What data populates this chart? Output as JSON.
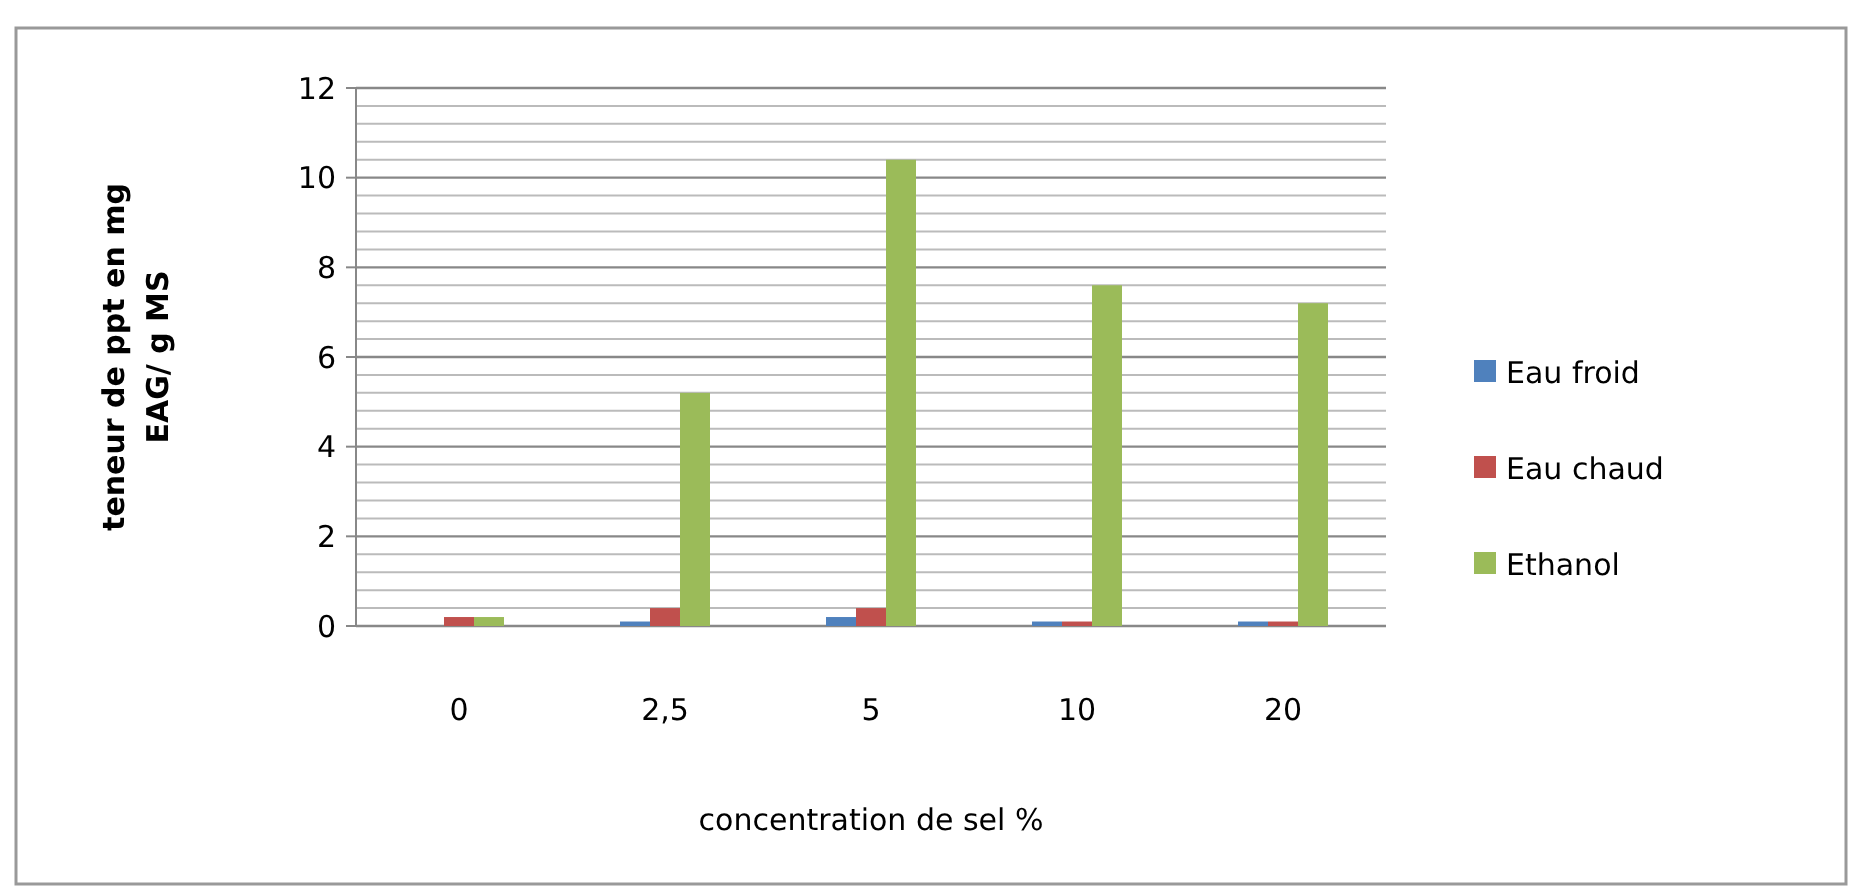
{
  "chart_data": {
    "type": "bar",
    "xlabel": "concentration de sel %",
    "ylabel": "teneur de ppt en mg EAG/ g MS",
    "categories": [
      "0",
      "2,5",
      "5",
      "10",
      "20"
    ],
    "series": [
      {
        "name": "Eau froid",
        "color": "#4f81bd",
        "values": [
          0,
          0.1,
          0.2,
          0.1,
          0.1
        ]
      },
      {
        "name": "Eau chaud",
        "color": "#c0504d",
        "values": [
          0.2,
          0.4,
          0.4,
          0.1,
          0.1
        ]
      },
      {
        "name": "Ethanol",
        "color": "#9bbb59",
        "values": [
          0.2,
          5.2,
          10.4,
          7.6,
          7.2
        ]
      }
    ],
    "ylim": [
      0,
      12
    ],
    "yticks": [
      0,
      2,
      4,
      6,
      8,
      10,
      12
    ],
    "grid": "y",
    "legend": "right"
  }
}
